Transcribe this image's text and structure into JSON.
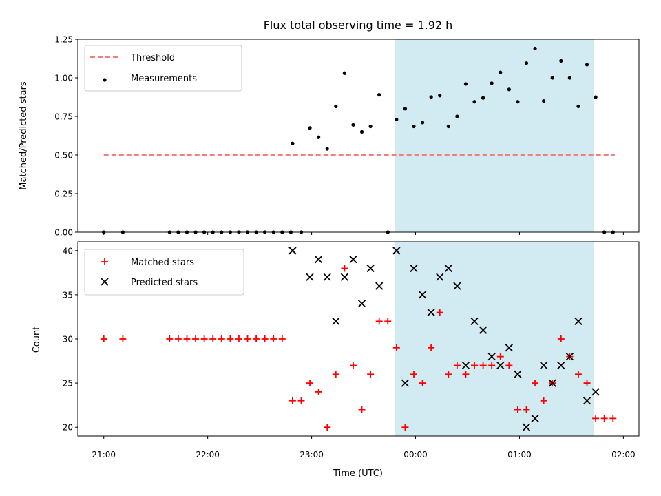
{
  "title": "Flux total observing time = 1.92 h",
  "chart_data": [
    {
      "type": "scatter",
      "ylabel": "Matched/Predicted stars",
      "ylim": [
        0,
        1.25
      ],
      "yticks": [
        "0.00",
        "0.25",
        "0.50",
        "0.75",
        "1.00",
        "1.25"
      ],
      "xlim_hours": [
        20.75,
        26.15
      ],
      "legend": [
        "Threshold",
        "Measurements"
      ],
      "legend_position": "top-left",
      "threshold": {
        "name": "Threshold",
        "value": 0.5,
        "x_range": [
          "21:00",
          "01:55"
        ],
        "color": "#f08080",
        "style": "dashed"
      },
      "shaded_span": {
        "from": "23:48",
        "to": "01:43",
        "color": "#add8e6"
      },
      "measurements": {
        "name": "Measurements",
        "color": "#000000",
        "points": [
          [
            "21:00",
            0.0
          ],
          [
            "21:11",
            0.0
          ],
          [
            "21:38",
            0.0
          ],
          [
            "21:43",
            0.0
          ],
          [
            "21:48",
            0.0
          ],
          [
            "21:53",
            0.0
          ],
          [
            "21:58",
            0.0
          ],
          [
            "22:03",
            0.0
          ],
          [
            "22:08",
            0.0
          ],
          [
            "22:13",
            0.0
          ],
          [
            "22:18",
            0.0
          ],
          [
            "22:23",
            0.0
          ],
          [
            "22:28",
            0.0
          ],
          [
            "22:33",
            0.0
          ],
          [
            "22:38",
            0.0
          ],
          [
            "22:43",
            0.0
          ],
          [
            "22:48",
            0.0
          ],
          [
            "22:49",
            0.575
          ],
          [
            "22:54",
            0.0
          ],
          [
            "22:59",
            0.675
          ],
          [
            "23:04",
            0.615
          ],
          [
            "23:09",
            0.54
          ],
          [
            "23:14",
            0.815
          ],
          [
            "23:19",
            1.03
          ],
          [
            "23:24",
            0.695
          ],
          [
            "23:29",
            0.65
          ],
          [
            "23:34",
            0.685
          ],
          [
            "23:39",
            0.89
          ],
          [
            "23:44",
            0.0
          ],
          [
            "23:49",
            0.73
          ],
          [
            "23:54",
            0.8
          ],
          [
            "23:59",
            0.685
          ],
          [
            "00:04",
            0.71
          ],
          [
            "00:09",
            0.875
          ],
          [
            "00:14",
            0.885
          ],
          [
            "00:19",
            0.685
          ],
          [
            "00:24",
            0.75
          ],
          [
            "00:29",
            0.96
          ],
          [
            "00:34",
            0.845
          ],
          [
            "00:39",
            0.87
          ],
          [
            "00:44",
            0.965
          ],
          [
            "00:49",
            1.035
          ],
          [
            "00:54",
            0.925
          ],
          [
            "00:59",
            0.845
          ],
          [
            "01:04",
            1.095
          ],
          [
            "01:09",
            1.19
          ],
          [
            "01:14",
            0.85
          ],
          [
            "01:19",
            1.0
          ],
          [
            "01:24",
            1.11
          ],
          [
            "01:29",
            1.0
          ],
          [
            "01:34",
            0.815
          ],
          [
            "01:39",
            1.085
          ],
          [
            "01:44",
            0.875
          ],
          [
            "01:49",
            0.0
          ],
          [
            "01:54",
            0.0
          ]
        ]
      }
    },
    {
      "type": "scatter",
      "xlabel": "Time (UTC)",
      "ylabel": "Count",
      "ylim": [
        19,
        41
      ],
      "yticks": [
        "20",
        "25",
        "30",
        "35",
        "40"
      ],
      "xticks": [
        "21:00",
        "22:00",
        "23:00",
        "00:00",
        "01:00",
        "02:00"
      ],
      "legend": [
        "Matched stars",
        "Predicted stars"
      ],
      "legend_position": "top-left",
      "shaded_span": {
        "from": "23:48",
        "to": "01:43",
        "color": "#add8e6"
      },
      "series": [
        {
          "name": "Matched stars",
          "marker": "+",
          "color": "#ff0000",
          "points": [
            [
              "21:00",
              30
            ],
            [
              "21:11",
              30
            ],
            [
              "21:38",
              30
            ],
            [
              "21:43",
              30
            ],
            [
              "21:48",
              30
            ],
            [
              "21:53",
              30
            ],
            [
              "21:58",
              30
            ],
            [
              "22:03",
              30
            ],
            [
              "22:08",
              30
            ],
            [
              "22:13",
              30
            ],
            [
              "22:18",
              30
            ],
            [
              "22:23",
              30
            ],
            [
              "22:28",
              30
            ],
            [
              "22:33",
              30
            ],
            [
              "22:38",
              30
            ],
            [
              "22:43",
              30
            ],
            [
              "22:49",
              23
            ],
            [
              "22:54",
              23
            ],
            [
              "22:59",
              25
            ],
            [
              "23:04",
              24
            ],
            [
              "23:09",
              20
            ],
            [
              "23:14",
              26
            ],
            [
              "23:19",
              38
            ],
            [
              "23:24",
              27
            ],
            [
              "23:29",
              22
            ],
            [
              "23:34",
              26
            ],
            [
              "23:39",
              32
            ],
            [
              "23:44",
              32
            ],
            [
              "23:49",
              29
            ],
            [
              "23:54",
              20
            ],
            [
              "23:59",
              26
            ],
            [
              "00:04",
              25
            ],
            [
              "00:09",
              29
            ],
            [
              "00:14",
              33
            ],
            [
              "00:19",
              26
            ],
            [
              "00:24",
              27
            ],
            [
              "00:29",
              26
            ],
            [
              "00:34",
              27
            ],
            [
              "00:39",
              27
            ],
            [
              "00:44",
              27
            ],
            [
              "00:49",
              28
            ],
            [
              "00:54",
              27
            ],
            [
              "00:59",
              22
            ],
            [
              "01:04",
              22
            ],
            [
              "01:09",
              25
            ],
            [
              "01:14",
              23
            ],
            [
              "01:19",
              25
            ],
            [
              "01:24",
              30
            ],
            [
              "01:29",
              28
            ],
            [
              "01:34",
              26
            ],
            [
              "01:39",
              25
            ],
            [
              "01:44",
              21
            ],
            [
              "01:49",
              21
            ],
            [
              "01:54",
              21
            ]
          ]
        },
        {
          "name": "Predicted stars",
          "marker": "x",
          "color": "#000000",
          "points": [
            [
              "22:49",
              40
            ],
            [
              "22:59",
              37
            ],
            [
              "23:04",
              39
            ],
            [
              "23:09",
              37
            ],
            [
              "23:14",
              32
            ],
            [
              "23:19",
              37
            ],
            [
              "23:24",
              39
            ],
            [
              "23:29",
              34
            ],
            [
              "23:34",
              38
            ],
            [
              "23:39",
              36
            ],
            [
              "23:49",
              40
            ],
            [
              "23:54",
              25
            ],
            [
              "23:59",
              38
            ],
            [
              "00:04",
              35
            ],
            [
              "00:09",
              33
            ],
            [
              "00:14",
              37
            ],
            [
              "00:19",
              38
            ],
            [
              "00:24",
              36
            ],
            [
              "00:29",
              27
            ],
            [
              "00:34",
              32
            ],
            [
              "00:39",
              31
            ],
            [
              "00:44",
              28
            ],
            [
              "00:49",
              27
            ],
            [
              "00:54",
              29
            ],
            [
              "00:59",
              26
            ],
            [
              "01:04",
              20
            ],
            [
              "01:09",
              21
            ],
            [
              "01:14",
              27
            ],
            [
              "01:19",
              25
            ],
            [
              "01:24",
              27
            ],
            [
              "01:29",
              28
            ],
            [
              "01:34",
              32
            ],
            [
              "01:39",
              23
            ],
            [
              "01:44",
              24
            ]
          ]
        }
      ]
    }
  ]
}
